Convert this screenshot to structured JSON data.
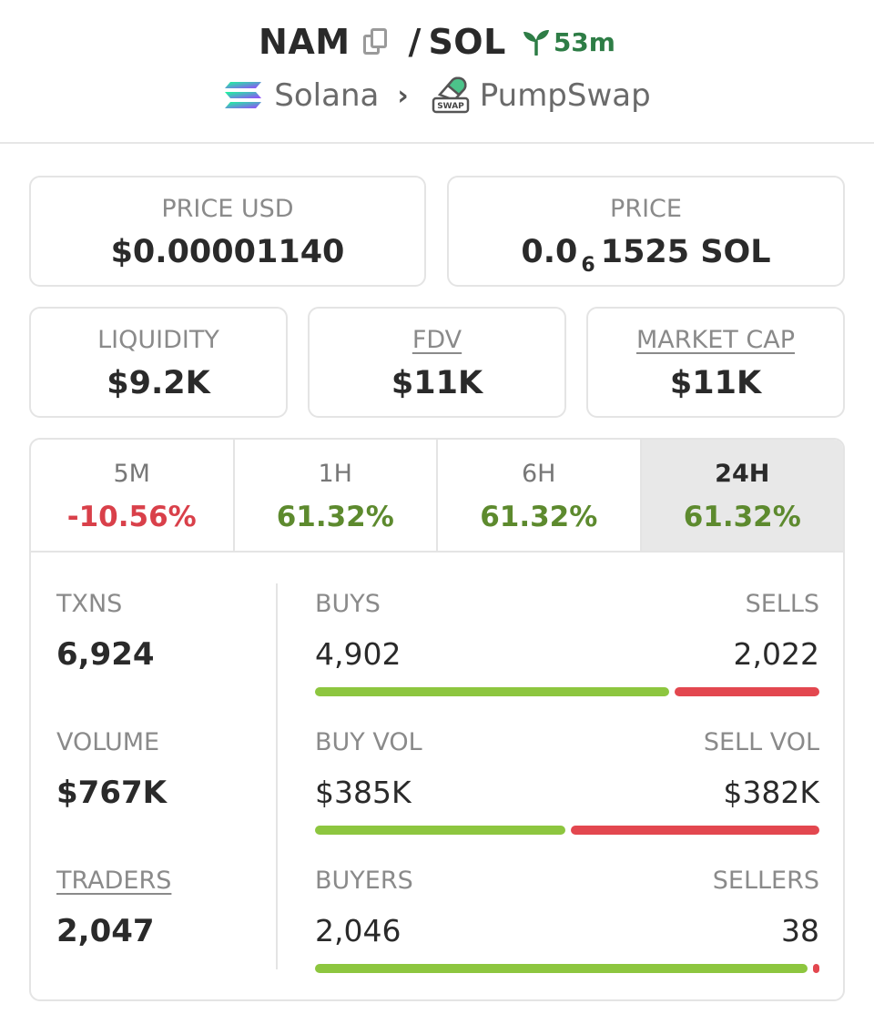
{
  "header": {
    "base_symbol": "NAM",
    "separator": "/",
    "quote_symbol": "SOL",
    "age": "53m",
    "chain": "Solana",
    "dex": "PumpSwap",
    "dex_badge": "SWAP",
    "chevron": "›"
  },
  "prices": {
    "usd": {
      "label": "PRICE USD",
      "value": "$0.00001140"
    },
    "native": {
      "label": "PRICE",
      "value_prefix": "0.0",
      "value_subscript": "6",
      "value_suffix": "1525 SOL"
    }
  },
  "metrics": {
    "liquidity": {
      "label": "LIQUIDITY",
      "value": "$9.2K"
    },
    "fdv": {
      "label": "FDV",
      "value": "$11K"
    },
    "market_cap": {
      "label": "MARKET CAP",
      "value": "$11K"
    }
  },
  "timeframes": [
    {
      "label": "5M",
      "change": "-10.56%",
      "trend": "negative",
      "active": false
    },
    {
      "label": "1H",
      "change": "61.32%",
      "trend": "positive",
      "active": false
    },
    {
      "label": "6H",
      "change": "61.32%",
      "trend": "positive",
      "active": false
    },
    {
      "label": "24H",
      "change": "61.32%",
      "trend": "positive",
      "active": true
    }
  ],
  "stats": {
    "txns": {
      "label": "TXNS",
      "value": "6,924"
    },
    "volume": {
      "label": "VOLUME",
      "value": "$767K"
    },
    "traders": {
      "label": "TRADERS",
      "value": "2,047"
    }
  },
  "splits": {
    "txns": {
      "left_label": "BUYS",
      "left_value": "4,902",
      "right_label": "SELLS",
      "right_value": "2,022",
      "buy_fraction": 0.708
    },
    "volume": {
      "left_label": "BUY VOL",
      "left_value": "$385K",
      "right_label": "SELL VOL",
      "right_value": "$382K",
      "buy_fraction": 0.502
    },
    "traders": {
      "left_label": "BUYERS",
      "left_value": "2,046",
      "right_label": "SELLERS",
      "right_value": "38",
      "buy_fraction": 0.982
    }
  },
  "colors": {
    "positive": "#5d8a2e",
    "negative": "#d9404a",
    "buy_bar": "#8dc63f",
    "sell_bar": "#e3474f",
    "age_green": "#2e7d46"
  },
  "icons": {
    "copy": "copy-icon",
    "age": "sprout-icon",
    "chain": "solana-logo-icon",
    "dex": "pumpswap-logo-icon",
    "chevron": "chevron-right-icon"
  }
}
